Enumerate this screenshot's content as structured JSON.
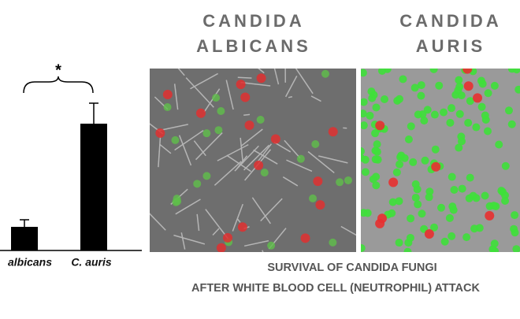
{
  "chart_data": {
    "type": "bar",
    "categories": [
      "albicans",
      "C. auris"
    ],
    "values": [
      30,
      161
    ],
    "errors": [
      9,
      26
    ],
    "color": "#000000",
    "annotation": "*"
  },
  "images": [
    {
      "title_lines": [
        "CANDIDA",
        "ALBICANS"
      ]
    },
    {
      "title_lines": [
        "CANDIDA",
        "AURIS"
      ]
    }
  ],
  "caption_lines": [
    "SURVIVAL OF CANDIDA FUNGI",
    "AFTER WHITE BLOOD CELL (NEUTROPHIL) ATTACK"
  ]
}
